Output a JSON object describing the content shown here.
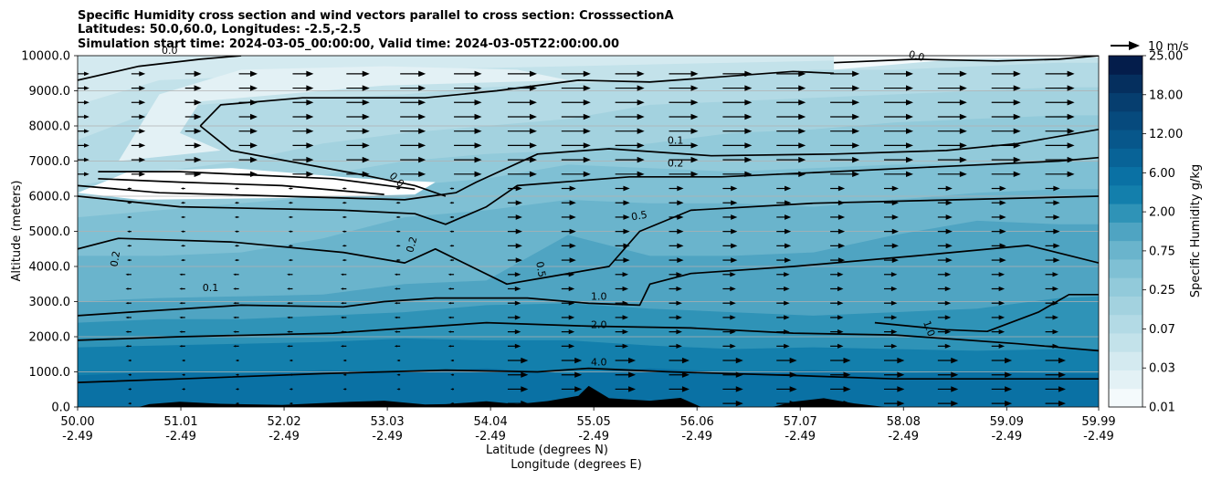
{
  "chart_data": {
    "type": "heatmap",
    "subtype": "filled-contour cross section with wind vectors",
    "title_lines": [
      "Specific Humidity cross section and wind vectors parallel to cross section: CrosssectionA",
      "Latitudes: 50.0,60.0, Longitudes: -2.5,-2.5",
      "Simulation start time: 2024-03-05_00:00:00, Valid time: 2024-03-05T22:00:00.00"
    ],
    "ylabel": "Altitude (meters)",
    "xlabel_lat": "Latitude (degrees N)",
    "xlabel_lon": "Longitude (degrees E)",
    "ylim": [
      0,
      10000
    ],
    "xlim": [
      50.0,
      59.99
    ],
    "yticks": [
      "0.0",
      "1000.0",
      "2000.0",
      "3000.0",
      "4000.0",
      "5000.0",
      "6000.0",
      "7000.0",
      "8000.0",
      "9000.0",
      "10000.0"
    ],
    "xticks": [
      {
        "lat": "50.00",
        "lon": "-2.49"
      },
      {
        "lat": "51.01",
        "lon": "-2.49"
      },
      {
        "lat": "52.02",
        "lon": "-2.49"
      },
      {
        "lat": "53.03",
        "lon": "-2.49"
      },
      {
        "lat": "54.04",
        "lon": "-2.49"
      },
      {
        "lat": "55.05",
        "lon": "-2.49"
      },
      {
        "lat": "56.06",
        "lon": "-2.49"
      },
      {
        "lat": "57.07",
        "lon": "-2.49"
      },
      {
        "lat": "58.08",
        "lon": "-2.49"
      },
      {
        "lat": "59.09",
        "lon": "-2.49"
      },
      {
        "lat": "59.99",
        "lon": "-2.49"
      }
    ],
    "colorbar": {
      "label": "Specific Humidity g/kg",
      "tick_labels": [
        "0.01",
        "0.03",
        "0.07",
        "0.25",
        "0.75",
        "2.00",
        "6.00",
        "12.00",
        "18.00",
        "25.00"
      ],
      "levels": [
        0.01,
        0.02,
        0.03,
        0.05,
        0.07,
        0.1,
        0.25,
        0.5,
        0.75,
        1.0,
        2.0,
        4.0,
        6.0,
        9.0,
        12.0,
        15.0,
        18.0,
        21.0,
        25.0
      ],
      "colors": [
        "#f4fafc",
        "#e3f1f5",
        "#d4eaf0",
        "#c3e2ea",
        "#b3dae5",
        "#a3d2df",
        "#92cada",
        "#7fc0d4",
        "#6ab4cc",
        "#4fa4c2",
        "#2f93b7",
        "#137fac",
        "#0a71a4",
        "#086397",
        "#07578b",
        "#064a7d",
        "#063e6f",
        "#052f5e",
        "#041d4b"
      ]
    },
    "wind_reference": {
      "label": "10 m/s",
      "speed_ms": 10
    },
    "contour_labels": [
      "0.0",
      "0.1",
      "0.2",
      "0.5",
      "1.0",
      "2.0",
      "4.0"
    ],
    "terrain_peak_altitude_m": 600
  }
}
